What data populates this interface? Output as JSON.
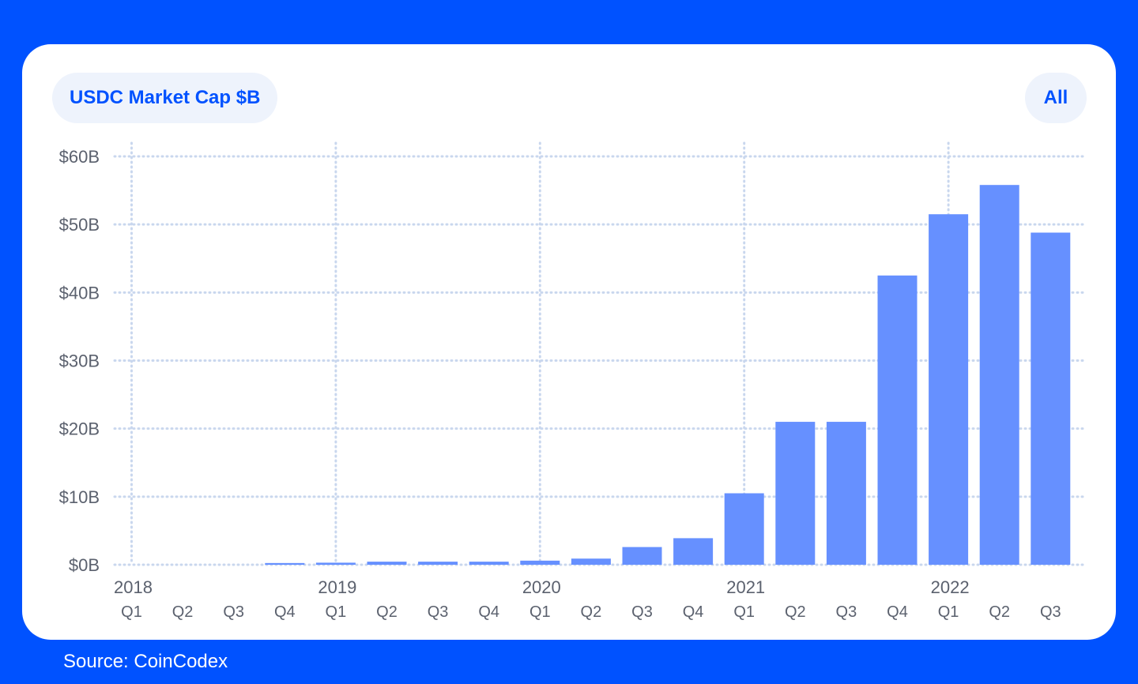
{
  "header": {
    "title": "USDC Market Cap $B",
    "range_button": "All"
  },
  "footer": {
    "source": "Source: CoinCodex"
  },
  "colors": {
    "background": "#0052ff",
    "card": "#ffffff",
    "bar": "#6690ff",
    "grid": "#c9d7ee",
    "pill_bg": "#eef3fc",
    "accent_text": "#0052ff",
    "axis_text": "#5b616e"
  },
  "chart_data": {
    "type": "bar",
    "title": "USDC Market Cap $B",
    "xlabel": "",
    "ylabel": "",
    "ylim": [
      0,
      60
    ],
    "grid": true,
    "legend": "none",
    "y_ticks": [
      {
        "value": 0,
        "label": "$0B"
      },
      {
        "value": 10,
        "label": "$10B"
      },
      {
        "value": 20,
        "label": "$20B"
      },
      {
        "value": 30,
        "label": "$30B"
      },
      {
        "value": 40,
        "label": "$40B"
      },
      {
        "value": 50,
        "label": "$50B"
      },
      {
        "value": 60,
        "label": "$60B"
      }
    ],
    "year_labels": [
      {
        "label": "2018",
        "index": 0
      },
      {
        "label": "2019",
        "index": 4
      },
      {
        "label": "2020",
        "index": 8
      },
      {
        "label": "2021",
        "index": 12
      },
      {
        "label": "2022",
        "index": 16
      }
    ],
    "categories": [
      "Q1",
      "Q2",
      "Q3",
      "Q4",
      "Q1",
      "Q2",
      "Q3",
      "Q4",
      "Q1",
      "Q2",
      "Q3",
      "Q4",
      "Q1",
      "Q2",
      "Q3",
      "Q4",
      "Q1",
      "Q2",
      "Q3"
    ],
    "series": [
      {
        "values": [
          0,
          0,
          0,
          0.25,
          0.3,
          0.45,
          0.45,
          0.45,
          0.6,
          0.9,
          2.6,
          3.9,
          10.5,
          21,
          21,
          42.5,
          51.5,
          55.8,
          48.8
        ]
      }
    ]
  }
}
